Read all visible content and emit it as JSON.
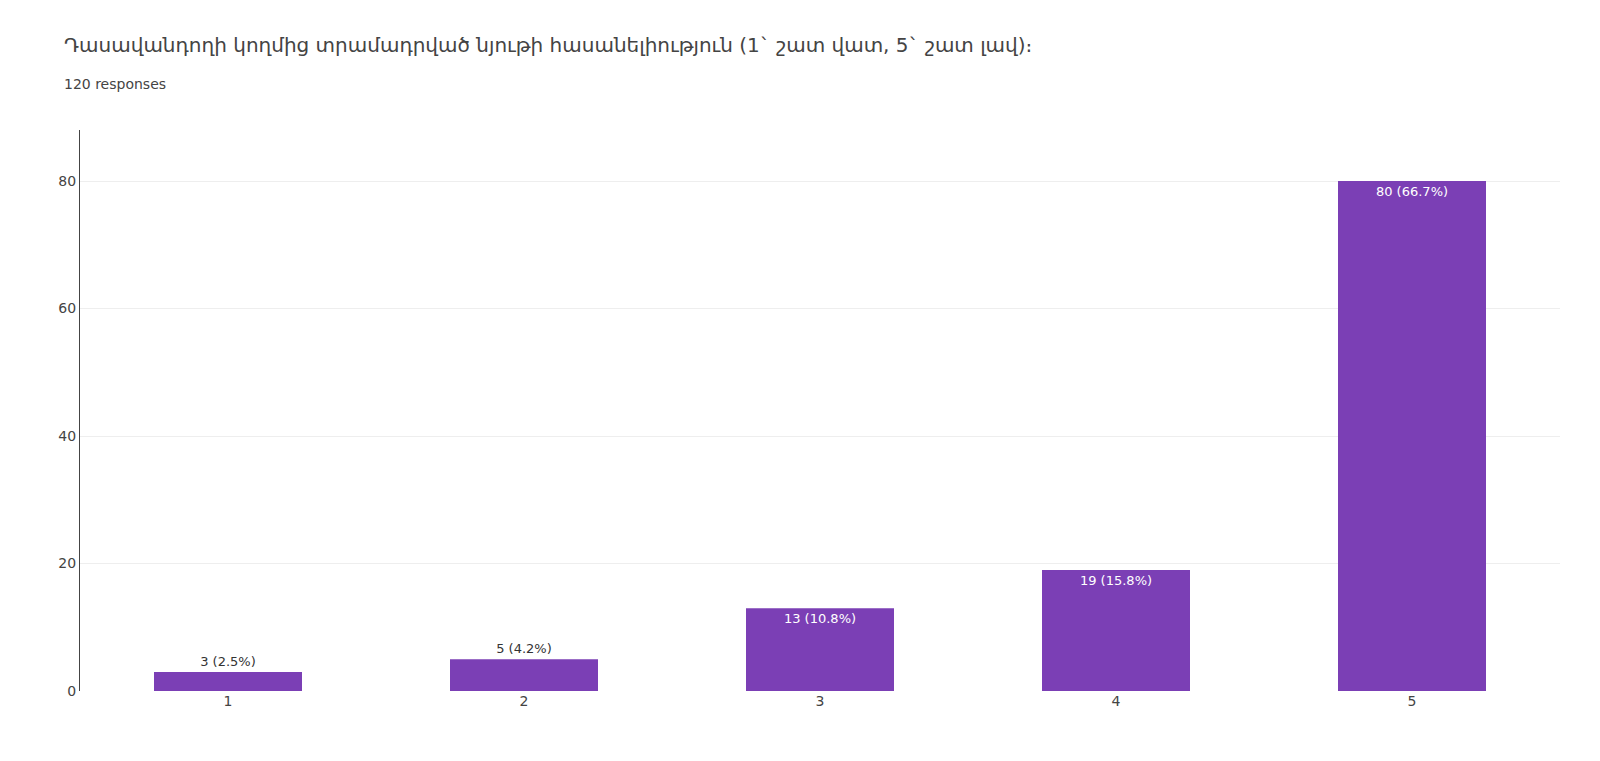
{
  "chart_data": {
    "type": "bar",
    "title": "Դասավանդողի կողմից տրամադրված նյութի հասանելիություն (1` շատ վատ, 5` շատ լավ)։",
    "subtitle": "120 responses",
    "categories": [
      "1",
      "2",
      "3",
      "4",
      "5"
    ],
    "values": [
      3,
      5,
      13,
      19,
      80
    ],
    "value_labels": [
      "3 (2.5%)",
      "5 (4.2%)",
      "13 (10.8%)",
      "19 (15.8%)",
      "80 (66.7%)"
    ],
    "data_labels": true,
    "color": "#7B3FB5",
    "ylim": [
      0,
      88
    ],
    "yticks": [
      0,
      20,
      40,
      60,
      80
    ],
    "grid": true
  }
}
